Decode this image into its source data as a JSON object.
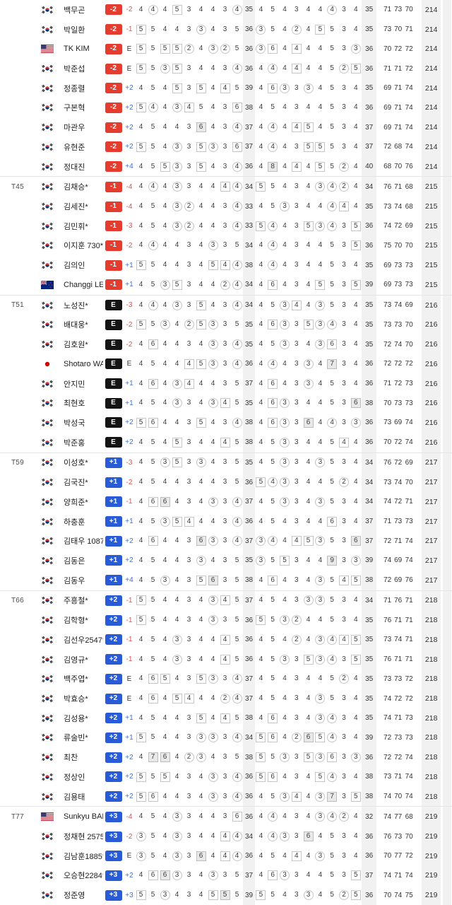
{
  "colors": {
    "badge_red": "#e53c30",
    "badge_black": "#141414",
    "badge_blue": "#2a5bd7",
    "under_par_text": "#d9534f",
    "over_par_text": "#3f6fd8",
    "even_par_text": "#333333",
    "stripe_bg": "#f1f1f2"
  },
  "leaderboard": {
    "groups": [
      {
        "position_label": "",
        "badge": "-2",
        "badge_style": "red",
        "rows": [
          {
            "flag": "kr",
            "name": "백무곤",
            "today": "-2",
            "out_holes": "4,(4),4,[5],3,4,4,3,(4)",
            "out": "35",
            "in_holes": "4,5,4,3,4,4,(4),3,4",
            "in": "35",
            "rounds": [
              "71",
              "73",
              "70"
            ],
            "total": "214"
          },
          {
            "flag": "kr",
            "name": "박일환",
            "today": "-1",
            "out_holes": "[5],5,4,4,3,(3),4,3,5",
            "out": "36",
            "in_holes": "(3),5,4,(2),4,[5],5,3,4",
            "in": "35",
            "rounds": [
              "73",
              "70",
              "71"
            ],
            "total": "214"
          },
          {
            "flag": "us",
            "name": "TK KIM",
            "today": "E",
            "out_holes": "[5],5,[5],[5],(2),4,(3),(2),5",
            "out": "36",
            "in_holes": "(3),[6],4,[4],4,4,5,3,(3)",
            "in": "36",
            "rounds": [
              "70",
              "72",
              "72"
            ],
            "total": "214"
          },
          {
            "flag": "kr",
            "name": "박준섭",
            "today": "E",
            "out_holes": "[5],5,(3),[5],3,4,4,3,(4)",
            "out": "36",
            "in_holes": "4,(4),4,[4],4,4,5,(2),[5]",
            "in": "36",
            "rounds": [
              "71",
              "71",
              "72"
            ],
            "total": "214"
          },
          {
            "flag": "kr",
            "name": "정종렬",
            "today": "+2",
            "out_holes": "4,5,4,[5],3,[5],4,[4],5",
            "out": "39",
            "in_holes": "4,[6],(3),3,(3),4,5,3,4",
            "in": "35",
            "rounds": [
              "69",
              "71",
              "74"
            ],
            "total": "214"
          },
          {
            "flag": "kr",
            "name": "구본혁",
            "today": "+2",
            "out_holes": "[5],(4),4,(3),[4],5,4,3,[6]",
            "out": "38",
            "in_holes": "4,5,4,3,4,4,5,3,4",
            "in": "36",
            "rounds": [
              "69",
              "71",
              "74"
            ],
            "total": "214"
          },
          {
            "flag": "kr",
            "name": "마관우",
            "today": "+2",
            "out_holes": "4,5,4,4,3,{6},4,3,(4)",
            "out": "37",
            "in_holes": "4,(4),4,[4],[5],4,5,3,4",
            "in": "37",
            "rounds": [
              "69",
              "71",
              "74"
            ],
            "total": "214"
          },
          {
            "flag": "kr",
            "name": "유현준",
            "today": "+2",
            "out_holes": "[5],5,4,(3),3,[5],(3),3,[6]",
            "out": "37",
            "in_holes": "4,(4),4,3,[5],[5],5,3,4",
            "in": "37",
            "rounds": [
              "72",
              "68",
              "74"
            ],
            "total": "214"
          },
          {
            "flag": "kr",
            "name": "정대진",
            "today": "+4",
            "out_holes": "4,5,[5],(3),3,[5],4,3,(4)",
            "out": "36",
            "in_holes": "4,{8},4,[4],4,[5],5,(2),4",
            "in": "40",
            "rounds": [
              "68",
              "70",
              "76"
            ],
            "total": "214"
          }
        ]
      },
      {
        "position_label": "T45",
        "badge": "-1",
        "badge_style": "red",
        "rows": [
          {
            "flag": "kr",
            "name": "김채승*",
            "today": "-4",
            "out_holes": "4,(4),4,(3),3,4,4,[4],(4)",
            "out": "34",
            "in_holes": "[5],5,4,3,4,(3),(4),(2),4",
            "in": "34",
            "rounds": [
              "76",
              "71",
              "68"
            ],
            "total": "215"
          },
          {
            "flag": "kr",
            "name": "김세진*",
            "today": "-4",
            "out_holes": "4,5,4,(3),(2),4,4,3,(4)",
            "out": "33",
            "in_holes": "4,5,(3),3,4,4,(4),[4],4",
            "in": "35",
            "rounds": [
              "73",
              "74",
              "68"
            ],
            "total": "215"
          },
          {
            "flag": "kr",
            "name": "김민휘*",
            "today": "-3",
            "out_holes": "4,5,4,(3),(2),4,4,3,(4)",
            "out": "33",
            "in_holes": "[5],(4),4,3,[5],(3),(4),3,[5]",
            "in": "36",
            "rounds": [
              "74",
              "72",
              "69"
            ],
            "total": "215"
          },
          {
            "flag": "kr",
            "name": "이지훈 730*",
            "today": "-2",
            "out_holes": "4,(4),4,4,3,4,(3),3,5",
            "out": "34",
            "in_holes": "4,(4),4,3,4,4,5,3,[5]",
            "in": "36",
            "rounds": [
              "75",
              "70",
              "70"
            ],
            "total": "215"
          },
          {
            "flag": "kr",
            "name": "김의인",
            "today": "+1",
            "out_holes": "[5],5,4,4,3,4,[5],[4],(4)",
            "out": "38",
            "in_holes": "4,(4),4,3,4,4,5,3,4",
            "in": "35",
            "rounds": [
              "69",
              "73",
              "73"
            ],
            "total": "215"
          },
          {
            "flag": "nz",
            "name": "Changgi LEE",
            "today": "+1",
            "out_holes": "4,5,(3),[5],3,4,4,(2),(4)",
            "out": "34",
            "in_holes": "4,[6],4,3,4,[5],5,3,[5]",
            "in": "39",
            "rounds": [
              "69",
              "73",
              "73"
            ],
            "total": "215"
          }
        ]
      },
      {
        "position_label": "T51",
        "badge": "E",
        "badge_style": "black",
        "rows": [
          {
            "flag": "kr",
            "name": "노성진*",
            "today": "-3",
            "out_holes": "4,(4),4,(3),3,[5],4,3,(4)",
            "out": "34",
            "in_holes": "4,5,(3),[4],4,(3),5,3,4",
            "in": "35",
            "rounds": [
              "73",
              "74",
              "69"
            ],
            "total": "216"
          },
          {
            "flag": "kr",
            "name": "배대웅*",
            "today": "-2",
            "out_holes": "[5],5,(3),4,(2),[5],(3),3,5",
            "out": "35",
            "in_holes": "4,[6],(3),3,[5],(3),(4),3,4",
            "in": "35",
            "rounds": [
              "73",
              "73",
              "70"
            ],
            "total": "216"
          },
          {
            "flag": "kr",
            "name": "김호원*",
            "today": "-2",
            "out_holes": "4,[6],4,4,3,4,(3),3,(4)",
            "out": "35",
            "in_holes": "4,5,(3),3,4,(3),[6],3,4",
            "in": "35",
            "rounds": [
              "72",
              "74",
              "70"
            ],
            "total": "216"
          },
          {
            "flag": "jp",
            "name": "Shotaro WADA",
            "today": "E",
            "out_holes": "4,5,4,4,[4],[5],(3),3,(4)",
            "out": "36",
            "in_holes": "4,(4),4,3,(3),4,{7},3,4",
            "in": "36",
            "rounds": [
              "72",
              "72",
              "72"
            ],
            "total": "216"
          },
          {
            "flag": "kr",
            "name": "안지민",
            "today": "+1",
            "out_holes": "4,[6],4,(3),[4],4,4,3,5",
            "out": "37",
            "in_holes": "4,[6],4,3,(3),4,5,3,4",
            "in": "36",
            "rounds": [
              "71",
              "72",
              "73"
            ],
            "total": "216"
          },
          {
            "flag": "kr",
            "name": "최현호",
            "today": "+1",
            "out_holes": "4,5,4,(3),3,4,(3),[4],5",
            "out": "35",
            "in_holes": "4,[6],(3),3,4,4,5,3,{6}",
            "in": "38",
            "rounds": [
              "70",
              "73",
              "73"
            ],
            "total": "216"
          },
          {
            "flag": "kr",
            "name": "박성국",
            "today": "+2",
            "out_holes": "[5],[6],4,4,3,[5],4,3,(4)",
            "out": "38",
            "in_holes": "4,[6],(3),3,{6},4,(4),3,(3)",
            "in": "36",
            "rounds": [
              "73",
              "69",
              "74"
            ],
            "total": "216"
          },
          {
            "flag": "kr",
            "name": "박준홍",
            "today": "+2",
            "out_holes": "4,5,4,[5],3,4,4,[4],5",
            "out": "38",
            "in_holes": "4,5,(3),3,4,4,5,[4],4",
            "in": "36",
            "rounds": [
              "70",
              "72",
              "74"
            ],
            "total": "216"
          }
        ]
      },
      {
        "position_label": "T59",
        "badge": "+1",
        "badge_style": "blue",
        "rows": [
          {
            "flag": "kr",
            "name": "이성호*",
            "today": "-3",
            "out_holes": "4,5,(3),[5],3,(3),4,3,5",
            "out": "35",
            "in_holes": "4,5,(3),3,4,(3),5,3,4",
            "in": "34",
            "rounds": [
              "76",
              "72",
              "69"
            ],
            "total": "217"
          },
          {
            "flag": "kr",
            "name": "김국진*",
            "today": "-2",
            "out_holes": "4,5,4,4,3,4,4,3,5",
            "out": "36",
            "in_holes": "[5],(4),(3),3,4,4,5,(2),4",
            "in": "34",
            "rounds": [
              "73",
              "74",
              "70"
            ],
            "total": "217"
          },
          {
            "flag": "kr",
            "name": "양희준*",
            "today": "-1",
            "out_holes": "4,[6],{6},4,3,4,(3),3,(4)",
            "out": "37",
            "in_holes": "4,5,(3),3,4,(3),5,3,4",
            "in": "34",
            "rounds": [
              "74",
              "72",
              "71"
            ],
            "total": "217"
          },
          {
            "flag": "kr",
            "name": "하충훈",
            "today": "+1",
            "out_holes": "4,5,(3),[5],[4],4,4,3,(4)",
            "out": "36",
            "in_holes": "4,5,4,3,4,4,[6],3,4",
            "in": "37",
            "rounds": [
              "71",
              "73",
              "73"
            ],
            "total": "217"
          },
          {
            "flag": "kr",
            "name": "김태우 1087",
            "today": "+2",
            "out_holes": "4,[6],4,4,3,{6},(3),3,(4)",
            "out": "37",
            "in_holes": "(3),(4),4,[4],[5],(3),5,3,{6}",
            "in": "37",
            "rounds": [
              "72",
              "71",
              "74"
            ],
            "total": "217"
          },
          {
            "flag": "kr",
            "name": "김동은",
            "today": "+2",
            "out_holes": "4,5,4,4,3,(3),4,3,5",
            "out": "35",
            "in_holes": "(3),5,[5],3,4,4,{9},3,(3)",
            "in": "39",
            "rounds": [
              "74",
              "69",
              "74"
            ],
            "total": "217"
          },
          {
            "flag": "kr",
            "name": "김동우",
            "today": "+4",
            "out_holes": "4,5,(3),4,3,[5],{6},3,5",
            "out": "38",
            "in_holes": "4,[6],4,3,4,(3),5,[4],[5]",
            "in": "38",
            "rounds": [
              "72",
              "69",
              "76"
            ],
            "total": "217"
          }
        ]
      },
      {
        "position_label": "T66",
        "badge": "+2",
        "badge_style": "blue",
        "rows": [
          {
            "flag": "kr",
            "name": "주흥철*",
            "today": "-1",
            "out_holes": "[5],5,4,4,3,4,(3),[4],5",
            "out": "37",
            "in_holes": "4,5,4,3,(3),(3),5,3,4",
            "in": "34",
            "rounds": [
              "71",
              "76",
              "71"
            ],
            "total": "218"
          },
          {
            "flag": "kr",
            "name": "김학형*",
            "today": "-1",
            "out_holes": "[5],5,4,4,3,4,(3),3,5",
            "out": "36",
            "in_holes": "[5],5,(3),(2),4,4,5,3,4",
            "in": "35",
            "rounds": [
              "76",
              "71",
              "71"
            ],
            "total": "218"
          },
          {
            "flag": "kr",
            "name": "김선우2547*",
            "today": "-1",
            "out_holes": "4,5,4,(3),3,4,4,[4],5",
            "out": "36",
            "in_holes": "4,5,4,(2),4,(3),(4),[4],[5]",
            "in": "35",
            "rounds": [
              "73",
              "74",
              "71"
            ],
            "total": "218"
          },
          {
            "flag": "kr",
            "name": "김영규*",
            "today": "-1",
            "out_holes": "4,5,4,(3),3,4,4,[4],5",
            "out": "36",
            "in_holes": "4,5,(3),3,[5],(3),(4),3,[5]",
            "in": "35",
            "rounds": [
              "76",
              "71",
              "71"
            ],
            "total": "218"
          },
          {
            "flag": "kr",
            "name": "백주엽*",
            "today": "E",
            "out_holes": "4,[6],[5],4,3,[5],(3),3,(4)",
            "out": "37",
            "in_holes": "4,5,4,3,4,4,5,(2),4",
            "in": "35",
            "rounds": [
              "73",
              "73",
              "72"
            ],
            "total": "218"
          },
          {
            "flag": "kr",
            "name": "박효승*",
            "today": "E",
            "out_holes": "4,[6],4,[5],[4],4,4,(2),(4)",
            "out": "37",
            "in_holes": "4,5,4,3,4,(3),5,3,4",
            "in": "35",
            "rounds": [
              "74",
              "72",
              "72"
            ],
            "total": "218"
          },
          {
            "flag": "kr",
            "name": "김성용*",
            "today": "+1",
            "out_holes": "4,5,4,4,3,[5],4,[4],5",
            "out": "38",
            "in_holes": "4,[6],4,3,4,(3),(4),3,4",
            "in": "35",
            "rounds": [
              "74",
              "71",
              "73"
            ],
            "total": "218"
          },
          {
            "flag": "kr",
            "name": "류술빈*",
            "today": "+1",
            "out_holes": "[5],5,4,4,3,(3),(3),3,(4)",
            "out": "34",
            "in_holes": "[5],[6],4,(2),{6},[5],(4),3,4",
            "in": "39",
            "rounds": [
              "72",
              "73",
              "73"
            ],
            "total": "218"
          },
          {
            "flag": "kr",
            "name": "최찬",
            "today": "+2",
            "out_holes": "4,{7},{6},4,(2),(3),4,3,5",
            "out": "38",
            "in_holes": "[5],5,(3),3,[5],(3),[6],3,(3)",
            "in": "36",
            "rounds": [
              "72",
              "72",
              "74"
            ],
            "total": "218"
          },
          {
            "flag": "kr",
            "name": "정상인",
            "today": "+2",
            "out_holes": "[5],5,[5],4,3,4,(3),3,(4)",
            "out": "36",
            "in_holes": "[5],[6],4,3,4,[5],(4),3,4",
            "in": "38",
            "rounds": [
              "73",
              "71",
              "74"
            ],
            "total": "218"
          },
          {
            "flag": "kr",
            "name": "김용태",
            "today": "+2",
            "out_holes": "[5],[6],4,4,3,4,(3),3,(4)",
            "out": "36",
            "in_holes": "4,5,(3),[4],4,(3),{7},3,[5]",
            "in": "38",
            "rounds": [
              "74",
              "70",
              "74"
            ],
            "total": "218"
          }
        ]
      },
      {
        "position_label": "T77",
        "badge": "+3",
        "badge_style": "blue",
        "rows": [
          {
            "flag": "us",
            "name": "Sunkyu BAEK*",
            "today": "-4",
            "out_holes": "4,5,4,(3),3,4,4,3,[6]",
            "out": "36",
            "in_holes": "4,(4),4,3,4,(3),(4),(2),4",
            "in": "32",
            "rounds": [
              "74",
              "77",
              "68"
            ],
            "total": "219"
          },
          {
            "flag": "kr",
            "name": "정채현 2575*",
            "today": "-2",
            "out_holes": "(3),5,4,(3),3,4,4,[4],(4)",
            "out": "34",
            "in_holes": "4,(4),(3),3,{6},4,5,3,4",
            "in": "36",
            "rounds": [
              "76",
              "73",
              "70"
            ],
            "total": "219"
          },
          {
            "flag": "kr",
            "name": "김남훈1885*",
            "today": "E",
            "out_holes": "(3),5,4,(3),3,{6},4,[4],(4)",
            "out": "36",
            "in_holes": "4,5,4,[4],4,(3),5,3,4",
            "in": "36",
            "rounds": [
              "70",
              "77",
              "72"
            ],
            "total": "219"
          },
          {
            "flag": "kr",
            "name": "오승현2284*",
            "today": "+2",
            "out_holes": "4,[6],{6},(3),3,4,(3),3,5",
            "out": "37",
            "in_holes": "4,[6],(3),3,4,4,5,3,[5]",
            "in": "37",
            "rounds": [
              "74",
              "71",
              "74"
            ],
            "total": "219"
          },
          {
            "flag": "kr",
            "name": "정준영",
            "today": "+3",
            "out_holes": "[5],5,(3),4,3,4,[5],{5},5",
            "out": "39",
            "in_holes": "[5],5,4,3,(3),4,5,(2),[5]",
            "in": "36",
            "rounds": [
              "70",
              "74",
              "75"
            ],
            "total": "219"
          }
        ]
      }
    ]
  }
}
